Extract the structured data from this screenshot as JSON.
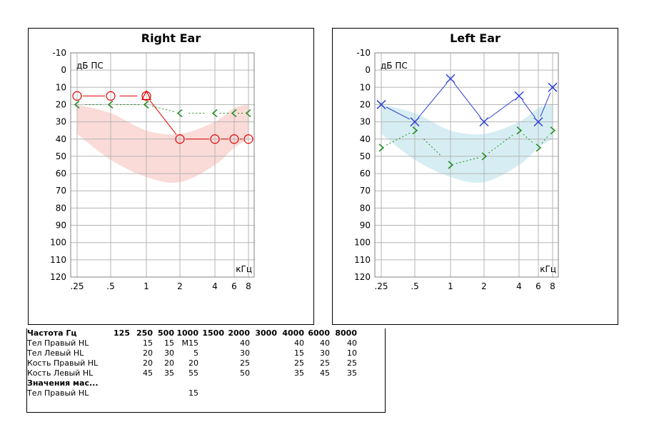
{
  "chart_data": [
    {
      "type": "line",
      "title": "Right Ear",
      "ylabel": "дБ ПС",
      "xlabel": "кГц",
      "x_tick_labels": [
        ".25",
        ".5",
        "1",
        "2",
        "4",
        "6",
        "8"
      ],
      "x_ticks_khz": [
        0.25,
        0.5,
        1,
        2,
        4,
        6,
        8
      ],
      "y_ticks": [
        -10,
        0,
        10,
        20,
        30,
        40,
        50,
        60,
        70,
        80,
        90,
        100,
        110,
        120
      ],
      "ylim": [
        -10,
        120
      ],
      "y_inverted": true,
      "grid": true,
      "band": {
        "color": "#fadbd8",
        "upper": [
          [
            0.25,
            20
          ],
          [
            0.5,
            25
          ],
          [
            1,
            35
          ],
          [
            2,
            37
          ],
          [
            4,
            30
          ],
          [
            6,
            22
          ],
          [
            8,
            20
          ]
        ],
        "lower": [
          [
            0.25,
            37
          ],
          [
            0.5,
            52
          ],
          [
            1,
            62
          ],
          [
            2,
            65
          ],
          [
            4,
            55
          ],
          [
            6,
            45
          ],
          [
            8,
            40
          ]
        ]
      },
      "series": [
        {
          "marker": "circle",
          "color": "#e00000",
          "line": "solid",
          "gaps": [
            [
              0.5,
              1
            ]
          ],
          "points": [
            [
              0.25,
              15
            ],
            [
              0.5,
              15
            ],
            [
              1,
              15
            ],
            [
              2,
              40
            ],
            [
              4,
              40
            ],
            [
              6,
              40
            ],
            [
              8,
              40
            ]
          ]
        },
        {
          "marker": "triangle",
          "color": "#e00000",
          "line": "none",
          "points": [
            [
              1,
              15
            ]
          ]
        },
        {
          "marker": "chevron-left",
          "color": "#1a8a1a",
          "line": "dotted",
          "gaps": [
            [
              0.25,
              0.5
            ],
            [
              2,
              4
            ],
            [
              4,
              6
            ],
            [
              6,
              8
            ]
          ],
          "points": [
            [
              0.25,
              20
            ],
            [
              0.5,
              20
            ],
            [
              1,
              20
            ],
            [
              2,
              25
            ],
            [
              4,
              25
            ],
            [
              6,
              25
            ],
            [
              8,
              25
            ]
          ]
        }
      ]
    },
    {
      "type": "line",
      "title": "Left Ear",
      "ylabel": "дБ ПС",
      "xlabel": "кГц",
      "x_tick_labels": [
        ".25",
        ".5",
        "1",
        "2",
        "4",
        "6",
        "8"
      ],
      "x_ticks_khz": [
        0.25,
        0.5,
        1,
        2,
        4,
        6,
        8
      ],
      "y_ticks": [
        -10,
        0,
        10,
        20,
        30,
        40,
        50,
        60,
        70,
        80,
        90,
        100,
        110,
        120
      ],
      "ylim": [
        -10,
        120
      ],
      "y_inverted": true,
      "grid": true,
      "band": {
        "color": "#d6eef3",
        "upper": [
          [
            0.25,
            20
          ],
          [
            0.5,
            25
          ],
          [
            1,
            35
          ],
          [
            2,
            37
          ],
          [
            4,
            30
          ],
          [
            6,
            22
          ],
          [
            8,
            20
          ]
        ],
        "lower": [
          [
            0.25,
            37
          ],
          [
            0.5,
            52
          ],
          [
            1,
            62
          ],
          [
            2,
            65
          ],
          [
            4,
            55
          ],
          [
            6,
            45
          ],
          [
            8,
            40
          ]
        ]
      },
      "series": [
        {
          "marker": "x",
          "color": "#2b3fd6",
          "line": "solid",
          "points": [
            [
              0.25,
              20
            ],
            [
              0.5,
              30
            ],
            [
              1,
              5
            ],
            [
              2,
              30
            ],
            [
              4,
              15
            ],
            [
              6,
              30
            ],
            [
              8,
              10
            ]
          ]
        },
        {
          "marker": "chevron-right",
          "color": "#1a8a1a",
          "line": "dotted",
          "gaps": [
            [
              0.5,
              1
            ]
          ],
          "points": [
            [
              0.25,
              45
            ],
            [
              0.5,
              35
            ],
            [
              1,
              55
            ],
            [
              2,
              50
            ],
            [
              4,
              35
            ],
            [
              6,
              45
            ],
            [
              8,
              35
            ]
          ]
        }
      ]
    }
  ],
  "table": {
    "header_label": "Частота Гц",
    "freqs": [
      "125",
      "250",
      "500",
      "1000",
      "1500",
      "2000",
      "3000",
      "4000",
      "6000",
      "8000"
    ],
    "rows": [
      {
        "label": "Тел Правый HL",
        "values": [
          "",
          "15",
          "15",
          "M15",
          "",
          "40",
          "",
          "40",
          "40",
          "40"
        ]
      },
      {
        "label": "Тел Левый HL",
        "values": [
          "",
          "20",
          "30",
          "5",
          "",
          "30",
          "",
          "15",
          "30",
          "10"
        ]
      },
      {
        "label": "Кость  Правый HL",
        "values": [
          "",
          "20",
          "20",
          "20",
          "",
          "25",
          "",
          "25",
          "25",
          "25"
        ]
      },
      {
        "label": "Кость  Левый HL",
        "values": [
          "",
          "45",
          "35",
          "55",
          "",
          "50",
          "",
          "35",
          "45",
          "35"
        ]
      }
    ],
    "section_title": "Значения мас...",
    "masked_rows": [
      {
        "label": "Тел Правый HL",
        "values": [
          "",
          "",
          "",
          "15",
          "",
          "",
          "",
          "",
          "",
          ""
        ]
      }
    ]
  }
}
